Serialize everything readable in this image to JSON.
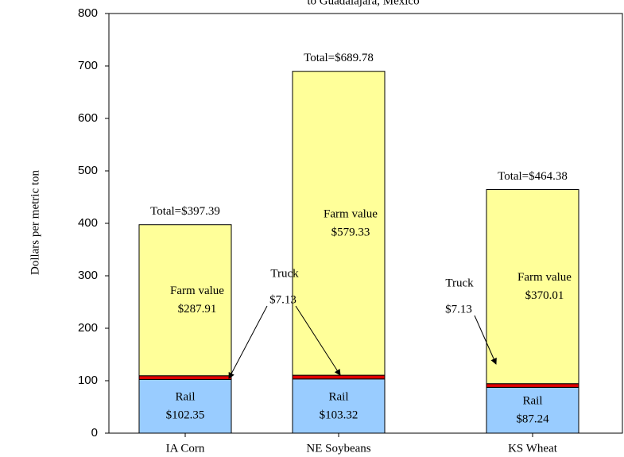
{
  "chart_data": {
    "type": "stacked_bar",
    "title": "to Guadalajara,  Mexico",
    "y_label": "Dollars per metric ton",
    "categories": [
      "IA Corn",
      "NE Soybeans",
      "KS Wheat"
    ],
    "series": [
      {
        "name": "Rail",
        "color": "#99ccff",
        "values": [
          102.35,
          103.32,
          87.24
        ],
        "value_labels": [
          "$102.35",
          "$103.32",
          "$87.24"
        ]
      },
      {
        "name": "Truck",
        "color": "#e00000",
        "values": [
          7.13,
          7.13,
          7.13
        ]
      },
      {
        "name": "Farm value",
        "color": "#ffff99",
        "values": [
          287.91,
          579.33,
          370.01
        ],
        "value_labels": [
          "$287.91",
          "$579.33",
          "$370.01"
        ]
      }
    ],
    "total_labels": [
      "Total=$397.39",
      "Total=$689.78",
      "Total=$464.38"
    ],
    "annotations": [
      {
        "label": "Truck",
        "value_label": "$7.13"
      },
      {
        "label": "Truck",
        "value_label": "$7.13"
      }
    ],
    "ylim": [
      0,
      800
    ],
    "yticks": [
      0,
      100,
      200,
      300,
      400,
      500,
      600,
      700,
      800
    ],
    "grid": false
  }
}
